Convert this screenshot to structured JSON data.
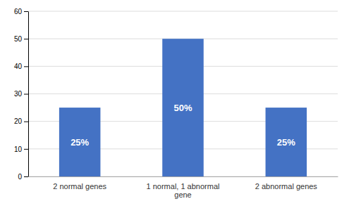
{
  "chart_data": {
    "type": "bar",
    "categories": [
      "2 normal genes",
      "1 normal, 1 abnormal\ngene",
      "2 abnormal genes"
    ],
    "values": [
      25,
      50,
      25
    ],
    "value_labels": [
      "25%",
      "50%",
      "25%"
    ],
    "data_labels": true,
    "color": "#4472C4",
    "ylim": [
      0,
      60
    ],
    "yticks": [
      0,
      10,
      20,
      30,
      40,
      50,
      60
    ],
    "grid": true
  }
}
